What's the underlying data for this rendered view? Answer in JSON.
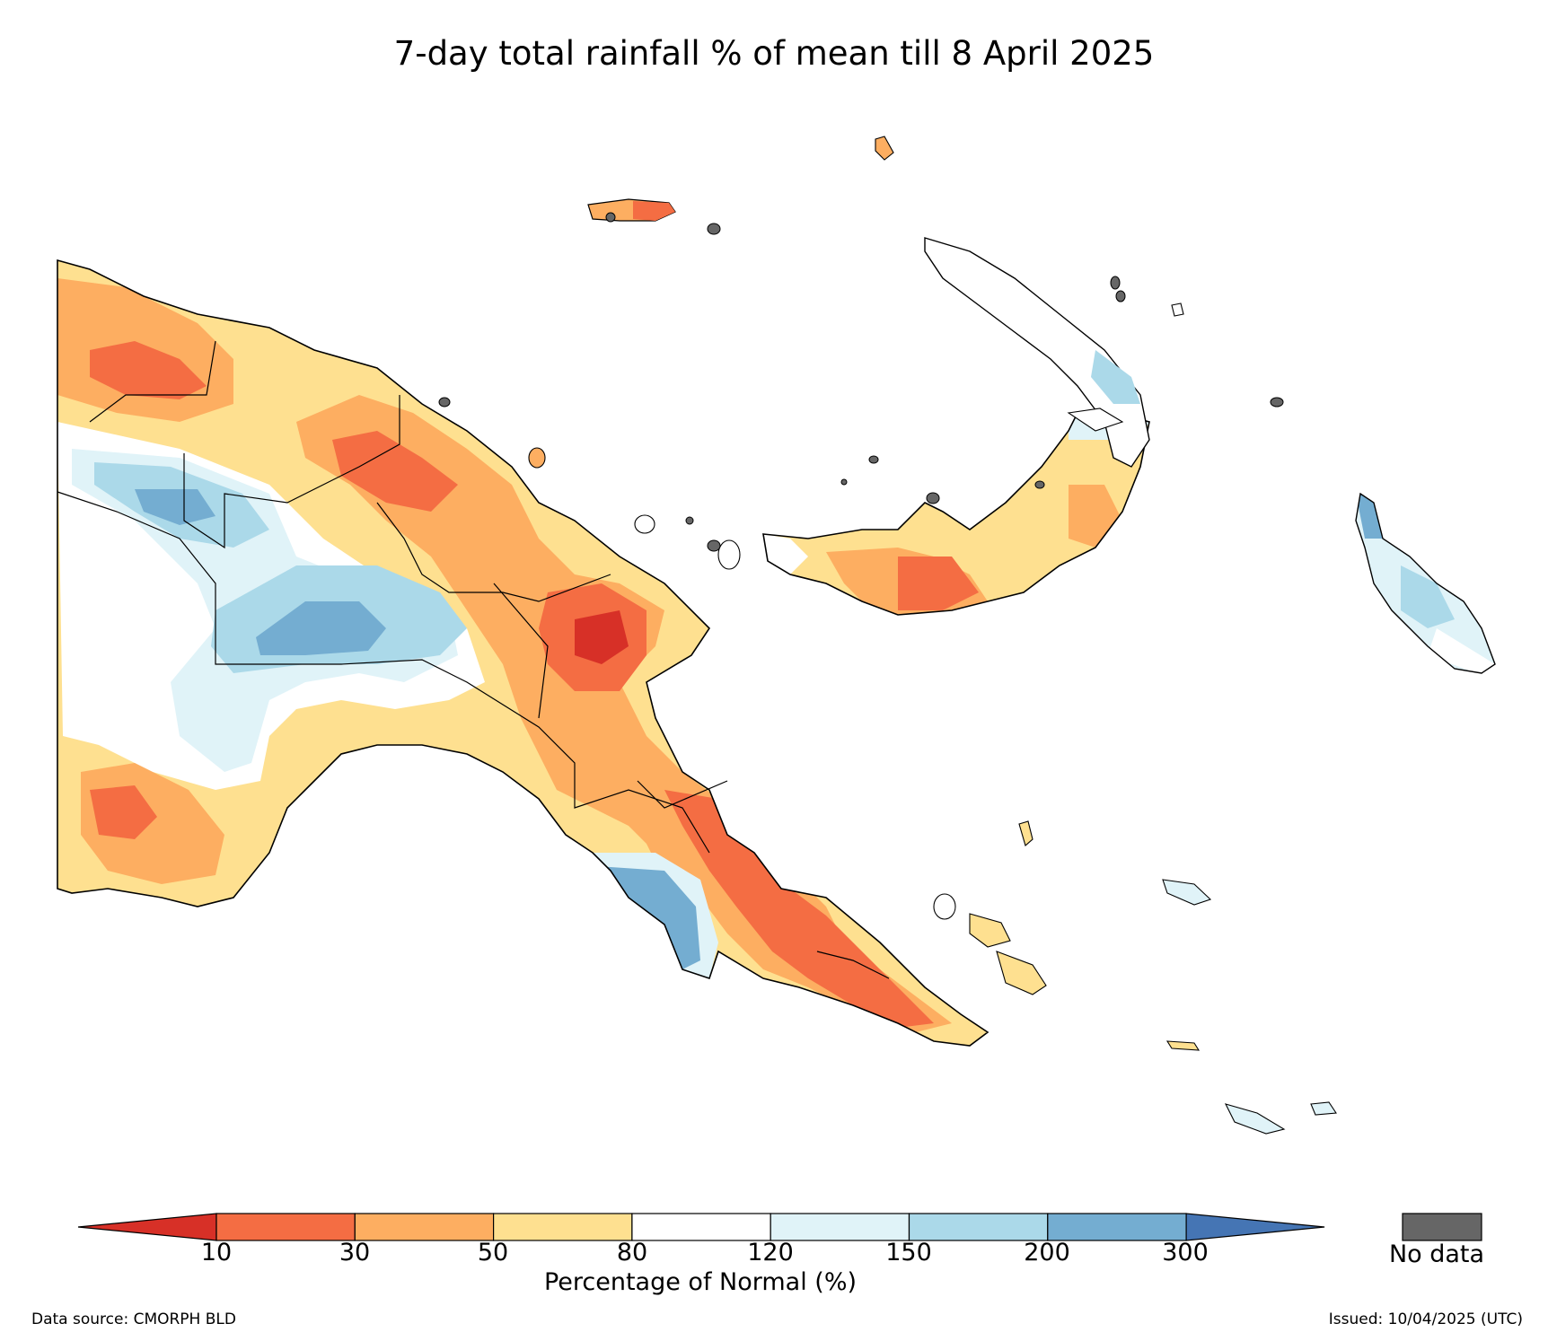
{
  "title": "7-day total rainfall % of mean till 8 April 2025",
  "colorbar": {
    "label": "Percentage of Normal (%)",
    "ticks": [
      "10",
      "30",
      "50",
      "80",
      "120",
      "150",
      "200",
      "300"
    ],
    "colors": {
      "lt10": "#d73027",
      "10_30": "#f46d43",
      "30_50": "#fdae61",
      "50_80": "#fee090",
      "80_120": "#ffffff",
      "120_150": "#e0f3f8",
      "150_200": "#abd9e9",
      "200_300": "#74add1",
      "gt300": "#4575b4"
    },
    "nodata_label": "No data",
    "nodata_color": "#666666"
  },
  "footer": {
    "source": "Data source: CMORPH BLD",
    "issued": "Issued: 10/04/2025 (UTC)"
  }
}
